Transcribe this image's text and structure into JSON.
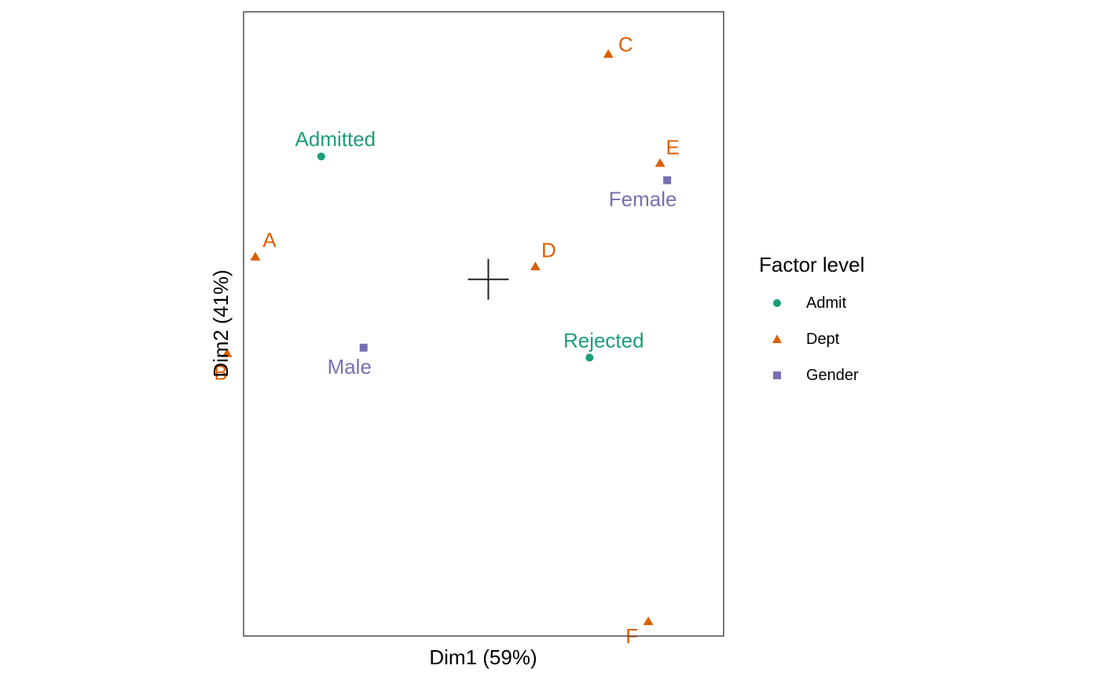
{
  "chart_data": {
    "type": "scatter",
    "xlabel": "Dim1 (59%)",
    "ylabel": "Dim2 (41%)",
    "xlim": [
      -0.52,
      0.5
    ],
    "ylim": [
      -0.72,
      0.54
    ],
    "grid": false,
    "legend_position": "right",
    "legend_title": "Factor level",
    "series": [
      {
        "name": "Admit",
        "marker": "circle",
        "color": "#1b9e77",
        "points": [
          {
            "label": "Admitted",
            "x": -0.355,
            "y": 0.248
          },
          {
            "label": "Rejected",
            "x": 0.215,
            "y": -0.158
          }
        ]
      },
      {
        "name": "Dept",
        "marker": "triangle",
        "color": "#d95f02",
        "points": [
          {
            "label": "A",
            "x": -0.495,
            "y": 0.046
          },
          {
            "label": "B",
            "x": -0.555,
            "y": -0.149
          },
          {
            "label": "C",
            "x": 0.255,
            "y": 0.455
          },
          {
            "label": "D",
            "x": 0.1,
            "y": 0.026
          },
          {
            "label": "E",
            "x": 0.365,
            "y": 0.235
          },
          {
            "label": "F",
            "x": 0.34,
            "y": -0.69
          }
        ]
      },
      {
        "name": "Gender",
        "marker": "square",
        "color": "#7570b3",
        "points": [
          {
            "label": "Male",
            "x": -0.265,
            "y": -0.138
          },
          {
            "label": "Female",
            "x": 0.38,
            "y": 0.2
          }
        ]
      }
    ],
    "origin_marker": {
      "x": 0,
      "y": 0
    }
  }
}
